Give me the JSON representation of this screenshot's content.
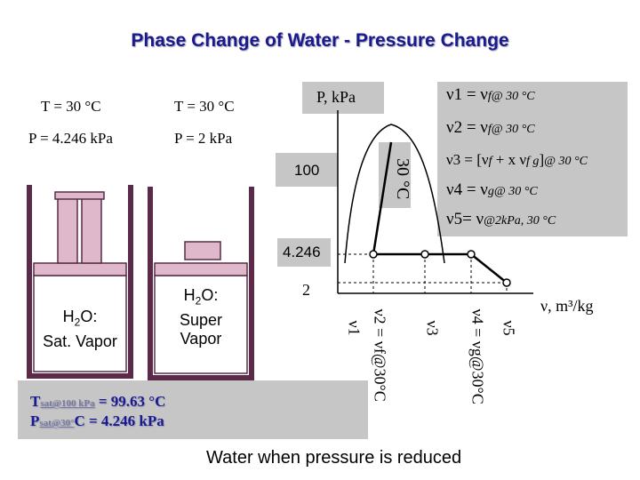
{
  "title": "Phase Change of Water - Pressure Change",
  "state1": {
    "temperature": "T = 30 °C",
    "pressure": "P = 4.246 kPa"
  },
  "state2": {
    "temperature": "T = 30 °C",
    "pressure": "P = 2 kPa"
  },
  "piston_left": {
    "line1": "H",
    "sub": "2",
    "line1_rest": "O:",
    "line2": "Sat. Vapor"
  },
  "piston_right": {
    "line1": "H",
    "sub": "2",
    "line1_rest": "O:",
    "line2": "Super",
    "line3": "Vapor"
  },
  "chart": {
    "y_axis_label": "P, kPa",
    "x_axis_label": "ν, m³/kg",
    "pressure_ticks": [
      "100",
      "4.246",
      "2"
    ],
    "isotherm_label": "30 °C",
    "volume_labels": [
      "ν1",
      "ν2 = νf@30°C",
      "ν3",
      "ν4 = νg@30°C",
      "ν5"
    ]
  },
  "equations": {
    "v1": {
      "lhs": "ν1 = ν",
      "sub": "f@ 30 °C"
    },
    "v2": {
      "lhs": "ν2 = ν",
      "sub": "f@ 30 °C"
    },
    "v3": {
      "lhs": "ν3 = [ν",
      "sub1": "f",
      "mid": " + x ν",
      "sub2": "f g",
      "rhs": "]",
      "sub3": "@ 30 °C"
    },
    "v4": {
      "lhs": "ν4 = ν",
      "sub": "g@ 30 °C"
    },
    "v5": {
      "lhs": "ν5= ν",
      "sub": "@2kPa, 30 °C"
    }
  },
  "tsat_box": {
    "line1_prefix": "T",
    "line1_sub": "sat@100 kPa",
    "line1_value": " = 99.63 °C",
    "line2_prefix": "P",
    "line2_sub": "sat@30°",
    "line2_value": "C = 4.246 kPa"
  },
  "caption": "Water when pressure is reduced",
  "colors": {
    "title": "#1a1a8c",
    "piston_frame": "#5a2a48",
    "piston_fill": "#e0b8cc",
    "box": "#c6c6c6"
  }
}
